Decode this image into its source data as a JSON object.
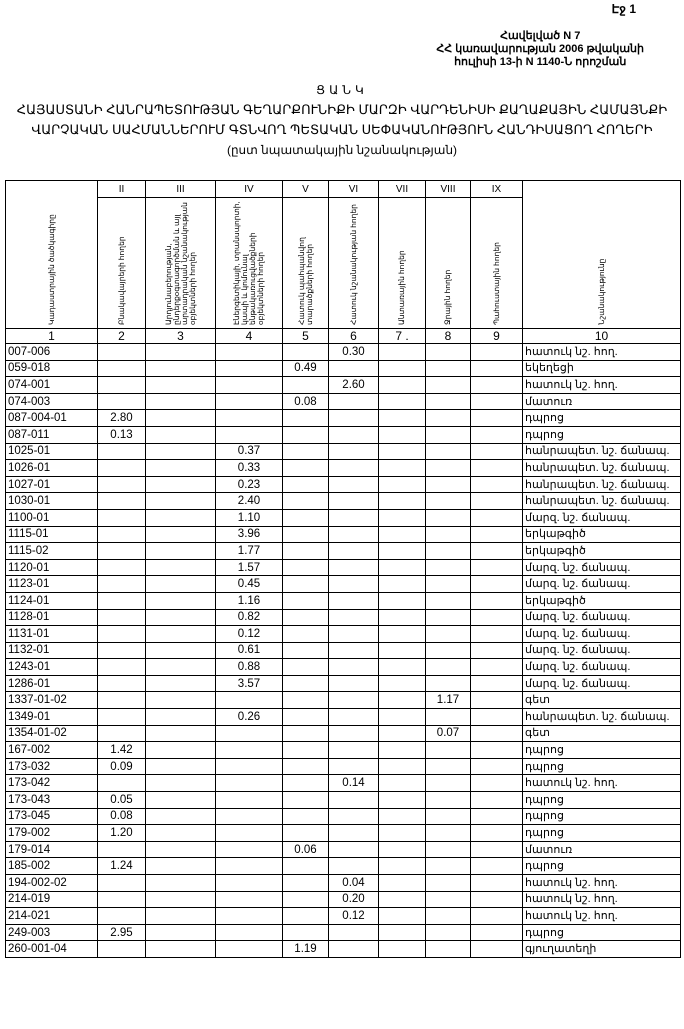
{
  "page_label": "Էջ 1",
  "annex": {
    "line1": "Հավելված N 7",
    "line2": "ՀՀ կառավարության 2006 թվականի",
    "line3": "հուլիսի 13-ի N 1140-Ն որոշման"
  },
  "title": {
    "heading": "ՑԱՆԿ",
    "line1": "ՀԱՅԱՍՏԱՆԻ ՀԱՆՐԱՊԵՏՈՒԹՅԱՆ ԳԵՂԱՐՔՈՒՆԻՔԻ ՄԱՐԶԻ ՎԱՐԴԵՆԻՍԻ ՔԱՂԱՔԱՅԻՆ ՀԱՄԱՅՆՔԻ",
    "line2": "ՎԱՐՉԱԿԱՆ ՍԱՀՄԱՆՆԵՐՈՒՄ ԳՏՆՎՈՂ ՊԵՏԱԿԱՆ ՍԵՓԱԿԱՆՈՒԹՅՈՒՆ ՀԱՆԴԻՍԱՑՈՂ ՀՈՂԵՐԻ",
    "line3": "(ըստ նպատակային նշանակության)"
  },
  "table": {
    "roman": [
      "",
      "II",
      "III",
      "IV",
      "V",
      "VI",
      "VII",
      "VIII",
      "IX",
      ""
    ],
    "headers": [
      "Կադաստրային ծածկագիրը",
      "Բնակավայրերի հողեր",
      "Արդյունաբերության, ընդերքօգտագործման և այլ արտադրական նշանակության օբյեկտների հողեր",
      "Էներգետիկայի, տրանսպորտի, կապի և կոմունալ ենթակառուցվածքների օբյեկտների հողեր",
      "Հատուկ պահպանվող տարածքների հողեր",
      "Հատուկ նշանակության հողեր",
      "Անտառային հողեր",
      "Ջրային հողեր",
      "Պահուստային հողեր",
      "Նշանակությունը"
    ],
    "numbers": [
      "1",
      "2",
      "3",
      "4",
      "5",
      "6",
      "7 .",
      "8",
      "9",
      "10"
    ],
    "rows": [
      [
        "007-006",
        "",
        "",
        "",
        "",
        "0.30",
        "",
        "",
        "",
        "հատուկ նշ. հող."
      ],
      [
        "059-018",
        "",
        "",
        "",
        "0.49",
        "",
        "",
        "",
        "",
        "եկեղեցի"
      ],
      [
        "074-001",
        "",
        "",
        "",
        "",
        "2.60",
        "",
        "",
        "",
        "հատուկ նշ. հող."
      ],
      [
        "074-003",
        "",
        "",
        "",
        "0.08",
        "",
        "",
        "",
        "",
        "մատուռ"
      ],
      [
        "087-004-01",
        "2.80",
        "",
        "",
        "",
        "",
        "",
        "",
        "",
        "դպրոց"
      ],
      [
        "087-011",
        "0.13",
        "",
        "",
        "",
        "",
        "",
        "",
        "",
        "դպրոց"
      ],
      [
        "1025-01",
        "",
        "",
        "0.37",
        "",
        "",
        "",
        "",
        "",
        "հանրապետ. նշ. ճանապ."
      ],
      [
        "1026-01",
        "",
        "",
        "0.33",
        "",
        "",
        "",
        "",
        "",
        "հանրապետ. նշ. ճանապ."
      ],
      [
        "1027-01",
        "",
        "",
        "0.23",
        "",
        "",
        "",
        "",
        "",
        "հանրապետ. նշ. ճանապ."
      ],
      [
        "1030-01",
        "",
        "",
        "2.40",
        "",
        "",
        "",
        "",
        "",
        "հանրապետ. նշ. ճանապ."
      ],
      [
        "1100-01",
        "",
        "",
        "1.10",
        "",
        "",
        "",
        "",
        "",
        "մարզ. նշ. ճանապ."
      ],
      [
        "1115-01",
        "",
        "",
        "3.96",
        "",
        "",
        "",
        "",
        "",
        "երկաթգիծ"
      ],
      [
        "1115-02",
        "",
        "",
        "1.77",
        "",
        "",
        "",
        "",
        "",
        "երկաթգիծ"
      ],
      [
        "1120-01",
        "",
        "",
        "1.57",
        "",
        "",
        "",
        "",
        "",
        "մարզ. նշ. ճանապ."
      ],
      [
        "1123-01",
        "",
        "",
        "0.45",
        "",
        "",
        "",
        "",
        "",
        "մարզ. նշ. ճանապ."
      ],
      [
        "1124-01",
        "",
        "",
        "1.16",
        "",
        "",
        "",
        "",
        "",
        "երկաթգիծ"
      ],
      [
        "1128-01",
        "",
        "",
        "0.82",
        "",
        "",
        "",
        "",
        "",
        "մարզ. նշ. ճանապ."
      ],
      [
        "1131-01",
        "",
        "",
        "0.12",
        "",
        "",
        "",
        "",
        "",
        "մարզ. նշ. ճանապ."
      ],
      [
        "1132-01",
        "",
        "",
        "0.61",
        "",
        "",
        "",
        "",
        "",
        "մարզ. նշ. ճանապ."
      ],
      [
        "1243-01",
        "",
        "",
        "0.88",
        "",
        "",
        "",
        "",
        "",
        "մարզ. նշ. ճանապ."
      ],
      [
        "1286-01",
        "",
        "",
        "3.57",
        "",
        "",
        "",
        "",
        "",
        "մարզ. նշ. ճանապ."
      ],
      [
        "1337-01-02",
        "",
        "",
        "",
        "",
        "",
        "",
        "1.17",
        "",
        "գետ"
      ],
      [
        "1349-01",
        "",
        "",
        "0.26",
        "",
        "",
        "",
        "",
        "",
        "հանրապետ. նշ. ճանապ."
      ],
      [
        "1354-01-02",
        "",
        "",
        "",
        "",
        "",
        "",
        "0.07",
        "",
        "գետ"
      ],
      [
        "167-002",
        "1.42",
        "",
        "",
        "",
        "",
        "",
        "",
        "",
        "դպրոց"
      ],
      [
        "173-032",
        "0.09",
        "",
        "",
        "",
        "",
        "",
        "",
        "",
        "դպրոց"
      ],
      [
        "173-042",
        "",
        "",
        "",
        "",
        "0.14",
        "",
        "",
        "",
        "հատուկ նշ. հող."
      ],
      [
        "173-043",
        "0.05",
        "",
        "",
        "",
        "",
        "",
        "",
        "",
        "դպրոց"
      ],
      [
        "173-045",
        "0.08",
        "",
        "",
        "",
        "",
        "",
        "",
        "",
        "դպրոց"
      ],
      [
        "179-002",
        "1.20",
        "",
        "",
        "",
        "",
        "",
        "",
        "",
        "դպրոց"
      ],
      [
        "179-014",
        "",
        "",
        "",
        "0.06",
        "",
        "",
        "",
        "",
        "մատուռ"
      ],
      [
        "185-002",
        "1.24",
        "",
        "",
        "",
        "",
        "",
        "",
        "",
        "դպրոց"
      ],
      [
        "194-002-02",
        "",
        "",
        "",
        "",
        "0.04",
        "",
        "",
        "",
        "հատուկ նշ. հող."
      ],
      [
        "214-019",
        "",
        "",
        "",
        "",
        "0.20",
        "",
        "",
        "",
        "հատուկ նշ. հող."
      ],
      [
        "214-021",
        "",
        "",
        "",
        "",
        "0.12",
        "",
        "",
        "",
        "հատուկ նշ. հող."
      ],
      [
        "249-003",
        "2.95",
        "",
        "",
        "",
        "",
        "",
        "",
        "",
        "դպրոց"
      ],
      [
        "260-001-04",
        "",
        "",
        "",
        "1.19",
        "",
        "",
        "",
        "",
        "գյուղատեղի"
      ]
    ]
  }
}
